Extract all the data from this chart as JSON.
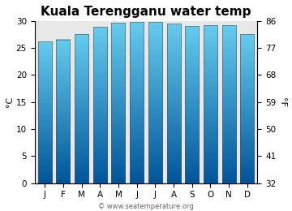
{
  "title": "Kuala Terengganu water temp",
  "months": [
    "J",
    "F",
    "M",
    "A",
    "M",
    "J",
    "J",
    "A",
    "S",
    "O",
    "N",
    "D"
  ],
  "values_c": [
    26.2,
    26.6,
    27.6,
    28.9,
    29.7,
    29.8,
    29.8,
    29.5,
    29.1,
    29.2,
    29.3,
    27.6
  ],
  "ylim_c": [
    0,
    30
  ],
  "yticks_c": [
    0,
    5,
    10,
    15,
    20,
    25,
    30
  ],
  "yticks_f": [
    32,
    41,
    50,
    59,
    68,
    77,
    86
  ],
  "ylabel_left": "°C",
  "ylabel_right": "°F",
  "bar_color_top": "#66ccee",
  "bar_color_bottom": "#005599",
  "bar_edge_color": "#555555",
  "bar_edge_width": 0.4,
  "fig_bg_color": "#ffffff",
  "plot_bg_color": "#e8e8e8",
  "title_fontsize": 11,
  "tick_fontsize": 7.5,
  "label_fontsize": 8,
  "watermark": "© www.seatemperature.org",
  "watermark_fontsize": 6
}
